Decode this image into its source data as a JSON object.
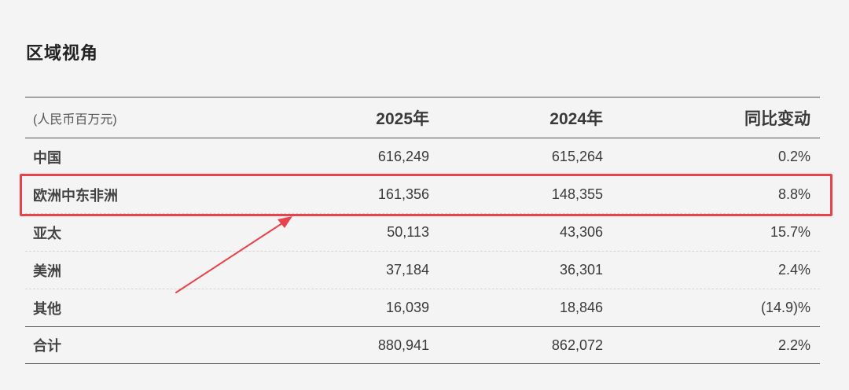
{
  "section_title": "区域视角",
  "table": {
    "unit_label": "(人民币百万元)",
    "columns": [
      "2025年",
      "2024年",
      "同比变动"
    ],
    "rows": [
      {
        "region": "中国",
        "y2025": "616,249",
        "y2024": "615,264",
        "yoy": "0.2%"
      },
      {
        "region": "欧洲中东非洲",
        "y2025": "161,356",
        "y2024": "148,355",
        "yoy": "8.8%"
      },
      {
        "region": "亚太",
        "y2025": "50,113",
        "y2024": "43,306",
        "yoy": "15.7%"
      },
      {
        "region": "美洲",
        "y2025": "37,184",
        "y2024": "36,301",
        "yoy": "2.4%"
      },
      {
        "region": "其他",
        "y2025": "16,039",
        "y2024": "18,846",
        "yoy": "(14.9)%"
      }
    ],
    "total": {
      "region": "合计",
      "y2025": "880,941",
      "y2024": "862,072",
      "yoy": "2.2%"
    }
  },
  "annotation": {
    "highlight_color": "#e8424a",
    "highlighted_row": "欧洲中东非洲"
  }
}
